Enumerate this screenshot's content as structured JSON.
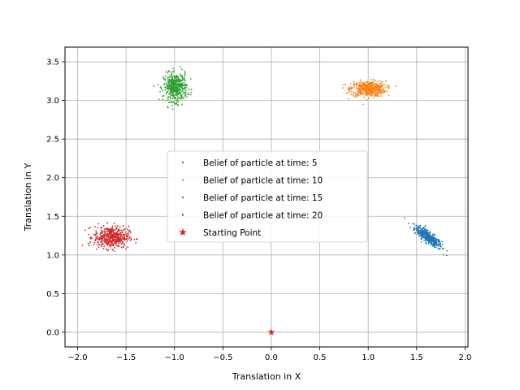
{
  "chart_data": {
    "type": "scatter",
    "title": "",
    "xlabel": "Translation in X",
    "ylabel": "Translation in Y",
    "xlim": [
      -2.13,
      2.03
    ],
    "ylim": [
      -0.19,
      3.69
    ],
    "xticks": [
      -2.0,
      -1.5,
      -1.0,
      -0.5,
      0.0,
      0.5,
      1.0,
      1.5,
      2.0
    ],
    "xtick_labels": [
      "−2.0",
      "−1.5",
      "−1.0",
      "−0.5",
      "0.0",
      "0.5",
      "1.0",
      "1.5",
      "2.0"
    ],
    "yticks": [
      0.0,
      0.5,
      1.0,
      1.5,
      2.0,
      2.5,
      3.0,
      3.5
    ],
    "ytick_labels": [
      "0.0",
      "0.5",
      "1.0",
      "1.5",
      "2.0",
      "2.5",
      "3.0",
      "3.5"
    ],
    "grid": true,
    "legend_position": "center",
    "series": [
      {
        "name": "Belief of particle at time: 5",
        "color": "#1f77b4",
        "marker": "point",
        "center": [
          1.62,
          1.23
        ],
        "spread": [
          0.07,
          0.07
        ],
        "correlation": -0.85,
        "count": 420
      },
      {
        "name": "Belief of particle at time: 10",
        "color": "#ff7f0e",
        "marker": "point",
        "center": [
          1.0,
          3.15
        ],
        "spread": [
          0.09,
          0.05
        ],
        "correlation": 0.0,
        "count": 450
      },
      {
        "name": "Belief of particle at time: 15",
        "color": "#2ca02c",
        "marker": "point",
        "center": [
          -0.99,
          3.17
        ],
        "spread": [
          0.06,
          0.09
        ],
        "correlation": 0.0,
        "count": 450
      },
      {
        "name": "Belief of particle at time: 20",
        "color": "#d62728",
        "marker": "point",
        "center": [
          -1.65,
          1.23
        ],
        "spread": [
          0.09,
          0.07
        ],
        "correlation": 0.0,
        "count": 450
      },
      {
        "name": "Starting Point",
        "color": "#d62728",
        "marker": "star",
        "points": [
          [
            0.0,
            0.0
          ]
        ]
      }
    ]
  }
}
